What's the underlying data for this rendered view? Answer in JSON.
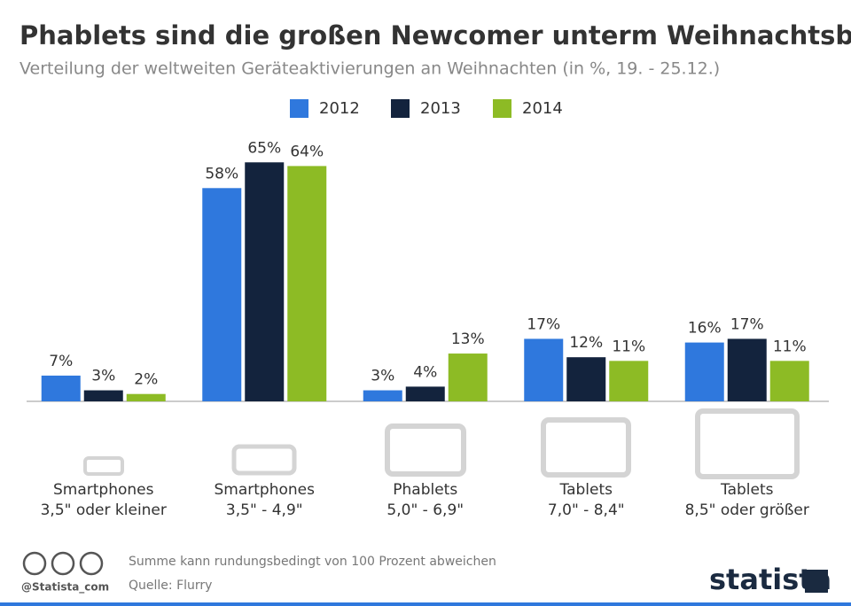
{
  "chart_data": {
    "type": "bar",
    "title": "Phablets sind die großen Newcomer unterm Weihnachtsbaum",
    "subtitle": "Verteilung der weltweiten Geräteaktivierungen an Weihnachten (in %, 19. - 25.12.)",
    "categories": [
      [
        "Smartphones",
        "3,5\" oder kleiner"
      ],
      [
        "Smartphones",
        "3,5\" - 4,9\""
      ],
      [
        "Phablets",
        "5,0\" - 6,9\""
      ],
      [
        "Tablets",
        "7,0\" - 8,4\""
      ],
      [
        "Tablets",
        "8,5\" oder größer"
      ]
    ],
    "series": [
      {
        "name": "2012",
        "color": "#2f78dd",
        "values": [
          7,
          58,
          3,
          17,
          16
        ],
        "value_labels": [
          "7%",
          "58%",
          "3%",
          "17%",
          "16%"
        ]
      },
      {
        "name": "2013",
        "color": "#13233d",
        "values": [
          3,
          65,
          4,
          12,
          17
        ],
        "value_labels": [
          "3%",
          "65%",
          "4%",
          "12%",
          "17%"
        ]
      },
      {
        "name": "2014",
        "color": "#8dbb25",
        "values": [
          2,
          64,
          13,
          11,
          11
        ],
        "value_labels": [
          "2%",
          "64%",
          "13%",
          "11%",
          "11%"
        ]
      }
    ]
  },
  "footer": {
    "handle": "@Statista_com",
    "note": "Summe kann rundungsbedingt von 100 Prozent abweichen",
    "source": "Quelle: Flurry",
    "brand": "statista"
  }
}
